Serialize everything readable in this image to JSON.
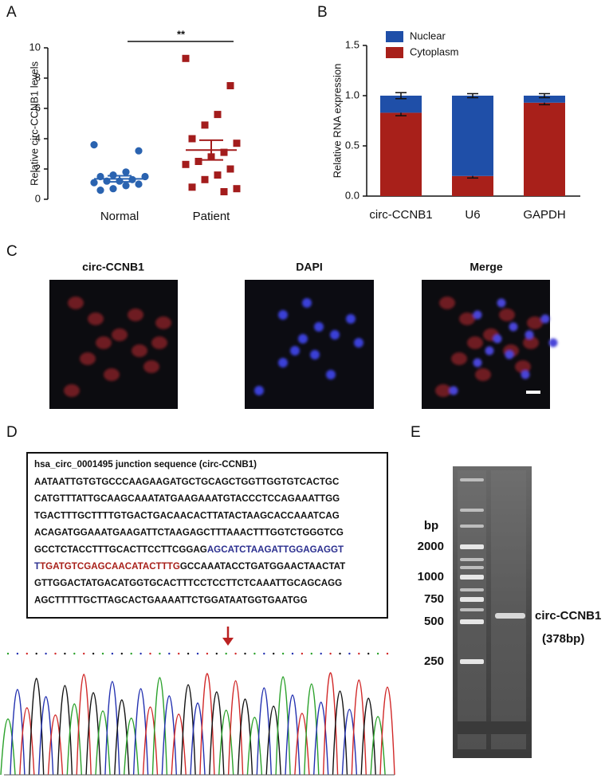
{
  "chart_data": [
    {
      "type": "dot",
      "ylabel": "Relative circ-CCNB1 levels",
      "categories": [
        "Normal",
        "Patient"
      ],
      "groups": [
        {
          "color": "#2a63b0",
          "marker": "circle",
          "values": [
            3.6,
            3.2,
            1.8,
            1.6,
            1.5,
            1.5,
            1.3,
            1.2,
            1.2,
            1.1,
            1.0,
            0.9,
            0.7,
            0.6
          ],
          "mean": 1.35,
          "sem": 0.2
        },
        {
          "color": "#a31c1c",
          "marker": "square",
          "values": [
            9.3,
            7.5,
            5.6,
            4.9,
            4.0,
            3.7,
            3.1,
            2.8,
            2.5,
            2.3,
            2.0,
            1.6,
            1.3,
            0.8,
            0.7,
            0.5
          ],
          "mean": 3.25,
          "sem": 0.65
        }
      ],
      "annotation": "**",
      "ylim": [
        0,
        10
      ],
      "yticks": [
        0,
        2,
        4,
        6,
        8,
        10
      ]
    },
    {
      "type": "stacked_bar",
      "ylabel": "Relative RNA expression",
      "categories": [
        "circ-CCNB1",
        "U6",
        "GAPDH"
      ],
      "series": [
        {
          "name": "Nuclear",
          "color": "#1f4fa8",
          "values": [
            0.17,
            0.8,
            0.07
          ],
          "errors": [
            0.03,
            0.02,
            0.02
          ]
        },
        {
          "name": "Cytoplasm",
          "color": "#a8201a",
          "values": [
            0.83,
            0.2,
            0.93
          ],
          "errors": [
            0.03,
            0.02,
            0.02
          ]
        }
      ],
      "ylim": [
        0,
        1.5
      ],
      "yticks": [
        {
          "value": 0,
          "label": "0.0"
        },
        0.5,
        {
          "value": 1,
          "label": "1.0"
        },
        1.5
      ],
      "legend": "top-left"
    }
  ],
  "panels": {
    "letters": [
      "A",
      "B",
      "C",
      "D",
      "E"
    ],
    "micrographs": {
      "labels": [
        "circ-CCNB1",
        "DAPI",
        "Merge"
      ]
    },
    "sequence": {
      "title": "hsa_circ_0001495 junction sequence (circ-CCNB1)",
      "lines": [
        [
          {
            "text": "AATAATTGTGTGCCCAAGAAGATGCTGCAGCTGGTTGGTGTCACTGC",
            "color": "#111111"
          }
        ],
        [
          {
            "text": "CATGTTTATTGCAAGCAAATATGAAGAAATGTACCCTCCAGAAATTGG",
            "color": "#111111"
          }
        ],
        [
          {
            "text": "TGACTTTGCTTTTGTGACTGACAACACTTATACTAAGCACCAAATCAG",
            "color": "#111111"
          }
        ],
        [
          {
            "text": "ACAGATGGAAATGAAGATTCTAAGAGCTTTAAACTTTGGTCTGGGTCG",
            "color": "#111111"
          }
        ],
        [
          {
            "text": "GCCTCTACCTTTGCACTTCCTTCGGAG",
            "color": "#111111"
          },
          {
            "text": "AGCATCTAAGATTGGAGAGGT",
            "color": "#2b2f8f"
          }
        ],
        [
          {
            "text": "T",
            "color": "#2b2f8f"
          },
          {
            "text": "TGATGTCGAGCAACATACTTTG",
            "color": "#a8201a"
          },
          {
            "text": "GCCAAATACCTGATGGAACTAACTAT",
            "color": "#111111"
          }
        ],
        [
          {
            "text": "GTTGGACTATGACATGGTGCACTTTCCTCCTTCTCAAATTGCAGCAGG",
            "color": "#111111"
          }
        ],
        [
          {
            "text": "AGCTTTTTGCTTAGCACTGAAAATTCTGGATAATGGTGAATGG",
            "color": "#111111"
          }
        ]
      ]
    },
    "gel": {
      "unit": "bp",
      "ladder": [
        2000,
        1000,
        750,
        500,
        250
      ],
      "band_label": "circ-CCNB1",
      "band_size": "(378bp)"
    }
  }
}
